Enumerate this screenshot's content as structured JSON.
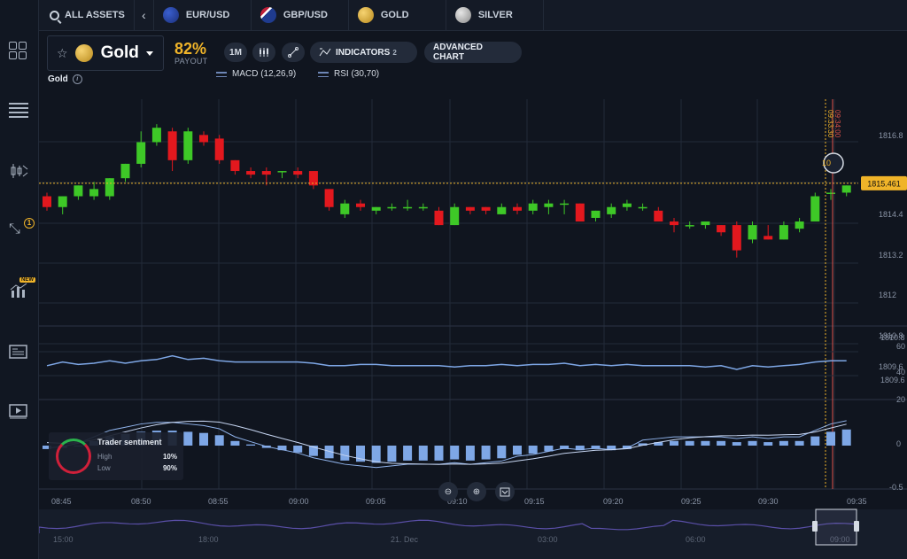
{
  "topbar": {
    "all_assets": "ALL ASSETS",
    "tabs": [
      {
        "label": "EUR/USD",
        "icon": "eur-flag-icon"
      },
      {
        "label": "GBP/USD",
        "icon": "gbp-flag-icon"
      },
      {
        "label": "GOLD",
        "icon": "gold-coin-icon"
      },
      {
        "label": "SILVER",
        "icon": "silver-coin-icon"
      }
    ]
  },
  "sidebar": {
    "items": [
      "grid-icon",
      "list-icon",
      "candles-icon",
      "arrows-icon",
      "analytics-icon",
      "news-icon",
      "video-icon"
    ],
    "arrows_badge": "1",
    "new_badge": "NEW"
  },
  "header": {
    "asset_name": "Gold",
    "payout_value": "82%",
    "payout_label": "PAYOUT",
    "timeframe": "1M",
    "indicators_label": "INDICATORS",
    "indicators_count": "2",
    "advanced_chart": "ADVANCED CHART",
    "asset_subtitle": "Gold",
    "indicator_legends": [
      "MACD (12,26,9)",
      "RSI (30,70)"
    ]
  },
  "chart_data": {
    "type": "candlestick",
    "current_price": "1815.461",
    "price_ticks": [
      "1816.8",
      "1815.461",
      "1814.4",
      "1813.2",
      "1812",
      "1810.8",
      "1809.6"
    ],
    "time_ticks": [
      "08:45",
      "08:50",
      "08:55",
      "09:00",
      "09:05",
      "09:10",
      "09:15",
      "09:20",
      "09:25",
      "09:30",
      "09:35"
    ],
    "expiry_times": [
      "09:34:00",
      "09:33:30"
    ],
    "timer": "10",
    "candles": [
      {
        "o": 1815.1,
        "h": 1815.2,
        "c": 1814.8,
        "l": 1814.7
      },
      {
        "o": 1814.8,
        "h": 1815.1,
        "c": 1815.1,
        "l": 1814.6
      },
      {
        "o": 1815.1,
        "h": 1815.4,
        "c": 1815.4,
        "l": 1815.0
      },
      {
        "o": 1815.1,
        "h": 1815.5,
        "c": 1815.3,
        "l": 1815.0
      },
      {
        "o": 1815.1,
        "h": 1815.6,
        "c": 1815.6,
        "l": 1815.0
      },
      {
        "o": 1815.6,
        "h": 1816.0,
        "c": 1816.0,
        "l": 1815.5
      },
      {
        "o": 1816.0,
        "h": 1816.9,
        "c": 1816.6,
        "l": 1815.9
      },
      {
        "o": 1816.6,
        "h": 1817.1,
        "c": 1817.0,
        "l": 1816.5
      },
      {
        "o": 1816.9,
        "h": 1817.0,
        "c": 1816.1,
        "l": 1815.8
      },
      {
        "o": 1816.1,
        "h": 1817.0,
        "c": 1816.9,
        "l": 1816.0
      },
      {
        "o": 1816.8,
        "h": 1816.9,
        "c": 1816.6,
        "l": 1816.5
      },
      {
        "o": 1816.7,
        "h": 1816.8,
        "c": 1816.1,
        "l": 1816.0
      },
      {
        "o": 1816.1,
        "h": 1816.1,
        "c": 1815.8,
        "l": 1815.7
      },
      {
        "o": 1815.8,
        "h": 1815.9,
        "c": 1815.7,
        "l": 1815.6
      },
      {
        "o": 1815.8,
        "h": 1815.9,
        "c": 1815.7,
        "l": 1815.4
      },
      {
        "o": 1815.8,
        "h": 1815.8,
        "c": 1815.8,
        "l": 1815.6
      },
      {
        "o": 1815.8,
        "h": 1815.9,
        "c": 1815.7,
        "l": 1815.6
      },
      {
        "o": 1815.8,
        "h": 1815.8,
        "c": 1815.4,
        "l": 1815.3
      },
      {
        "o": 1815.3,
        "h": 1815.3,
        "c": 1814.8,
        "l": 1814.7
      },
      {
        "o": 1814.6,
        "h": 1815.0,
        "c": 1814.9,
        "l": 1814.5
      },
      {
        "o": 1814.9,
        "h": 1815.0,
        "c": 1814.8,
        "l": 1814.7
      },
      {
        "o": 1814.7,
        "h": 1814.8,
        "c": 1814.8,
        "l": 1814.6
      },
      {
        "o": 1814.8,
        "h": 1814.9,
        "c": 1814.8,
        "l": 1814.7
      },
      {
        "o": 1814.8,
        "h": 1815.0,
        "c": 1814.8,
        "l": 1814.7
      },
      {
        "o": 1814.8,
        "h": 1814.9,
        "c": 1814.8,
        "l": 1814.7
      },
      {
        "o": 1814.7,
        "h": 1814.8,
        "c": 1814.3,
        "l": 1814.3
      },
      {
        "o": 1814.3,
        "h": 1814.9,
        "c": 1814.8,
        "l": 1814.3
      },
      {
        "o": 1814.8,
        "h": 1814.8,
        "c": 1814.7,
        "l": 1814.6
      },
      {
        "o": 1814.8,
        "h": 1814.8,
        "c": 1814.7,
        "l": 1814.6
      },
      {
        "o": 1814.6,
        "h": 1814.9,
        "c": 1814.8,
        "l": 1814.6
      },
      {
        "o": 1814.8,
        "h": 1814.9,
        "c": 1814.7,
        "l": 1814.6
      },
      {
        "o": 1814.7,
        "h": 1815.0,
        "c": 1814.9,
        "l": 1814.6
      },
      {
        "o": 1814.8,
        "h": 1815.0,
        "c": 1814.9,
        "l": 1814.6
      },
      {
        "o": 1814.9,
        "h": 1815.0,
        "c": 1814.9,
        "l": 1814.6
      },
      {
        "o": 1814.9,
        "h": 1814.9,
        "c": 1814.4,
        "l": 1814.4
      },
      {
        "o": 1814.5,
        "h": 1814.7,
        "c": 1814.7,
        "l": 1814.4
      },
      {
        "o": 1814.6,
        "h": 1814.9,
        "c": 1814.8,
        "l": 1814.5
      },
      {
        "o": 1814.8,
        "h": 1815.0,
        "c": 1814.9,
        "l": 1814.7
      },
      {
        "o": 1814.8,
        "h": 1814.9,
        "c": 1814.8,
        "l": 1814.7
      },
      {
        "o": 1814.7,
        "h": 1814.8,
        "c": 1814.4,
        "l": 1814.4
      },
      {
        "o": 1814.4,
        "h": 1814.5,
        "c": 1814.3,
        "l": 1814.1
      },
      {
        "o": 1814.3,
        "h": 1814.4,
        "c": 1814.3,
        "l": 1814.2
      },
      {
        "o": 1814.3,
        "h": 1814.4,
        "c": 1814.4,
        "l": 1814.2
      },
      {
        "o": 1814.3,
        "h": 1814.3,
        "c": 1814.1,
        "l": 1814.0
      },
      {
        "o": 1814.3,
        "h": 1814.4,
        "c": 1813.6,
        "l": 1813.4
      },
      {
        "o": 1813.9,
        "h": 1814.4,
        "c": 1814.3,
        "l": 1813.8
      },
      {
        "o": 1814.0,
        "h": 1814.3,
        "c": 1813.9,
        "l": 1813.9
      },
      {
        "o": 1813.9,
        "h": 1814.4,
        "c": 1814.3,
        "l": 1813.9
      },
      {
        "o": 1814.2,
        "h": 1814.5,
        "c": 1814.4,
        "l": 1814.1
      },
      {
        "o": 1814.4,
        "h": 1815.2,
        "c": 1815.1,
        "l": 1814.4
      },
      {
        "o": 1815.2,
        "h": 1815.3,
        "c": 1815.2,
        "l": 1815.0
      },
      {
        "o": 1815.2,
        "h": 1815.4,
        "c": 1815.4,
        "l": 1815.1
      }
    ],
    "rsi": [
      58,
      61,
      59,
      60,
      62,
      60,
      62,
      63,
      66,
      63,
      64,
      62,
      61,
      61,
      61,
      61,
      61,
      60,
      58,
      58,
      59,
      59,
      58,
      58,
      58,
      58,
      57,
      58,
      58,
      59,
      58,
      59,
      59,
      60,
      58,
      59,
      58,
      59,
      58,
      58,
      58,
      58,
      57,
      58,
      55,
      58,
      57,
      58,
      59,
      61,
      62,
      62
    ],
    "macd_hist": [
      -0.03,
      -0.02,
      0.0,
      0.04,
      0.08,
      0.1,
      0.12,
      0.13,
      0.13,
      0.12,
      0.11,
      0.09,
      0.04,
      0.01,
      -0.02,
      -0.04,
      -0.06,
      -0.09,
      -0.11,
      -0.13,
      -0.14,
      -0.15,
      -0.14,
      -0.13,
      -0.13,
      -0.13,
      -0.12,
      -0.13,
      -0.12,
      -0.11,
      -0.08,
      -0.07,
      -0.05,
      -0.03,
      -0.04,
      -0.03,
      -0.04,
      -0.03,
      0.02,
      0.03,
      0.04,
      0.04,
      0.04,
      0.04,
      0.03,
      0.04,
      0.03,
      0.04,
      0.04,
      0.08,
      0.12,
      0.14
    ],
    "macd_ticks": [
      "20",
      "0",
      "-0.5"
    ],
    "rsi_ticks": [
      "60",
      "40"
    ],
    "nav_ticks": [
      "15:00",
      "18:00",
      "21. Dec",
      "03:00",
      "06:00",
      "09:00"
    ],
    "colors": {
      "up": "#3ec827",
      "down": "#e3181e",
      "price": "#f0b429",
      "grid": "#222a38"
    }
  },
  "sentiment": {
    "title": "Trader sentiment",
    "high_label": "High",
    "high_value": "10%",
    "low_label": "Low",
    "low_value": "90%"
  }
}
